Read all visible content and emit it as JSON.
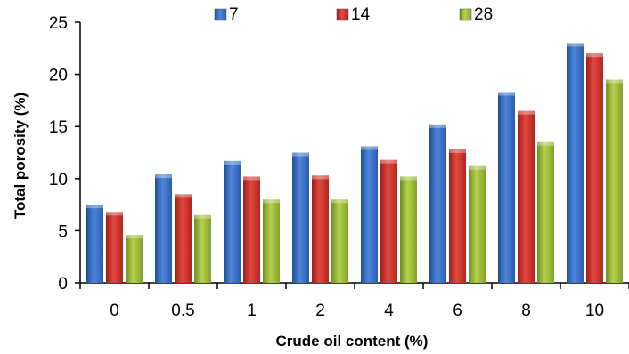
{
  "chart_data": {
    "type": "bar",
    "categories": [
      "0",
      "0.5",
      "1",
      "2",
      "4",
      "6",
      "8",
      "10"
    ],
    "series": [
      {
        "name": "7",
        "values": [
          7.5,
          10.4,
          11.7,
          12.5,
          13.1,
          15.2,
          18.3,
          23.0
        ],
        "color": "#3A6FC4"
      },
      {
        "name": "14",
        "values": [
          6.8,
          8.5,
          10.2,
          10.3,
          11.8,
          12.8,
          16.5,
          22.0
        ],
        "color": "#D2322D"
      },
      {
        "name": "28",
        "values": [
          4.6,
          6.5,
          8.0,
          8.0,
          10.2,
          11.2,
          13.5,
          19.5
        ],
        "color": "#9BBB3B"
      }
    ],
    "xlabel": "Crude oil content (%)",
    "ylabel": "Total porosity (%)",
    "ylim": [
      0,
      25
    ],
    "yticks": [
      "0",
      "5",
      "10",
      "15",
      "20",
      "25"
    ],
    "grid": false,
    "legend_position": "top"
  }
}
